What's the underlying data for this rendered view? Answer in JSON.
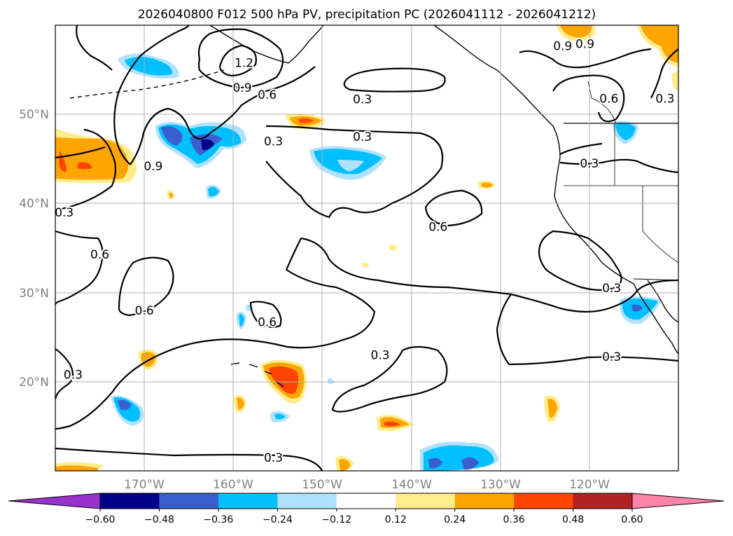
{
  "chart_data": {
    "type": "contour_map",
    "title": "2026040800 F012 500 hPa PV, precipitation PC (2026041112 - 2026041212)",
    "x_axis": {
      "range_deg_e": [
        -180,
        -110
      ],
      "ticks": [
        -170,
        -160,
        -150,
        -140,
        -130,
        -120
      ],
      "tick_labels": [
        "170°W",
        "160°W",
        "150°W",
        "140°W",
        "130°W",
        "120°W"
      ]
    },
    "y_axis": {
      "range_deg_n": [
        10,
        60
      ],
      "ticks": [
        20,
        30,
        40,
        50
      ],
      "tick_labels": [
        "20°N",
        "30°N",
        "40°N",
        "50°N"
      ]
    },
    "grid": true,
    "colorbar": {
      "levels": [
        -0.6,
        -0.48,
        -0.36,
        -0.24,
        -0.12,
        0.12,
        0.24,
        0.36,
        0.48,
        0.6
      ],
      "tick_labels": [
        "−0.60",
        "−0.48",
        "−0.36",
        "−0.24",
        "−0.12",
        "0.12",
        "0.24",
        "0.36",
        "0.48",
        "0.60"
      ],
      "colors": [
        "#9932cc",
        "#00008b",
        "#3a5fcd",
        "#00bfff",
        "#b0e2ff",
        "#ffffff",
        "#ffec8b",
        "#ffa500",
        "#ff4500",
        "#b22222",
        "#ff82ab"
      ],
      "extend": "both"
    },
    "contour_labels": [
      {
        "text": "0.3",
        "lon": -145.5,
        "lat": 51.7
      },
      {
        "text": "0.3",
        "lon": -145.5,
        "lat": 47.5
      },
      {
        "text": "0.3",
        "lon": -155.5,
        "lat": 47.0
      },
      {
        "text": "0.3",
        "lon": -179.0,
        "lat": 39.0
      },
      {
        "text": "0.3",
        "lon": -178.0,
        "lat": 20.8
      },
      {
        "text": "0.3",
        "lon": -143.5,
        "lat": 23.0
      },
      {
        "text": "0.3",
        "lon": -155.5,
        "lat": 11.5
      },
      {
        "text": "0.3",
        "lon": -117.5,
        "lat": 30.5
      },
      {
        "text": "0.3",
        "lon": -117.5,
        "lat": 22.8
      },
      {
        "text": "0.3",
        "lon": -120.0,
        "lat": 44.5
      },
      {
        "text": "0.3",
        "lon": -111.5,
        "lat": 51.8
      },
      {
        "text": "0.6",
        "lon": -156.2,
        "lat": 52.2
      },
      {
        "text": "0.6",
        "lon": -137.0,
        "lat": 37.4
      },
      {
        "text": "0.6",
        "lon": -175.0,
        "lat": 34.3
      },
      {
        "text": "0.6",
        "lon": -170.0,
        "lat": 28.0
      },
      {
        "text": "0.6",
        "lon": -156.2,
        "lat": 26.7
      },
      {
        "text": "0.6",
        "lon": -117.8,
        "lat": 51.8
      },
      {
        "text": "0.9",
        "lon": -159.0,
        "lat": 53.0
      },
      {
        "text": "0.9",
        "lon": -169.0,
        "lat": 44.2
      },
      {
        "text": "0.9",
        "lon": -123.0,
        "lat": 57.7
      },
      {
        "text": "0.9",
        "lon": -120.5,
        "lat": 57.9
      },
      {
        "text": "1.2",
        "lon": -158.8,
        "lat": 55.8
      }
    ]
  }
}
